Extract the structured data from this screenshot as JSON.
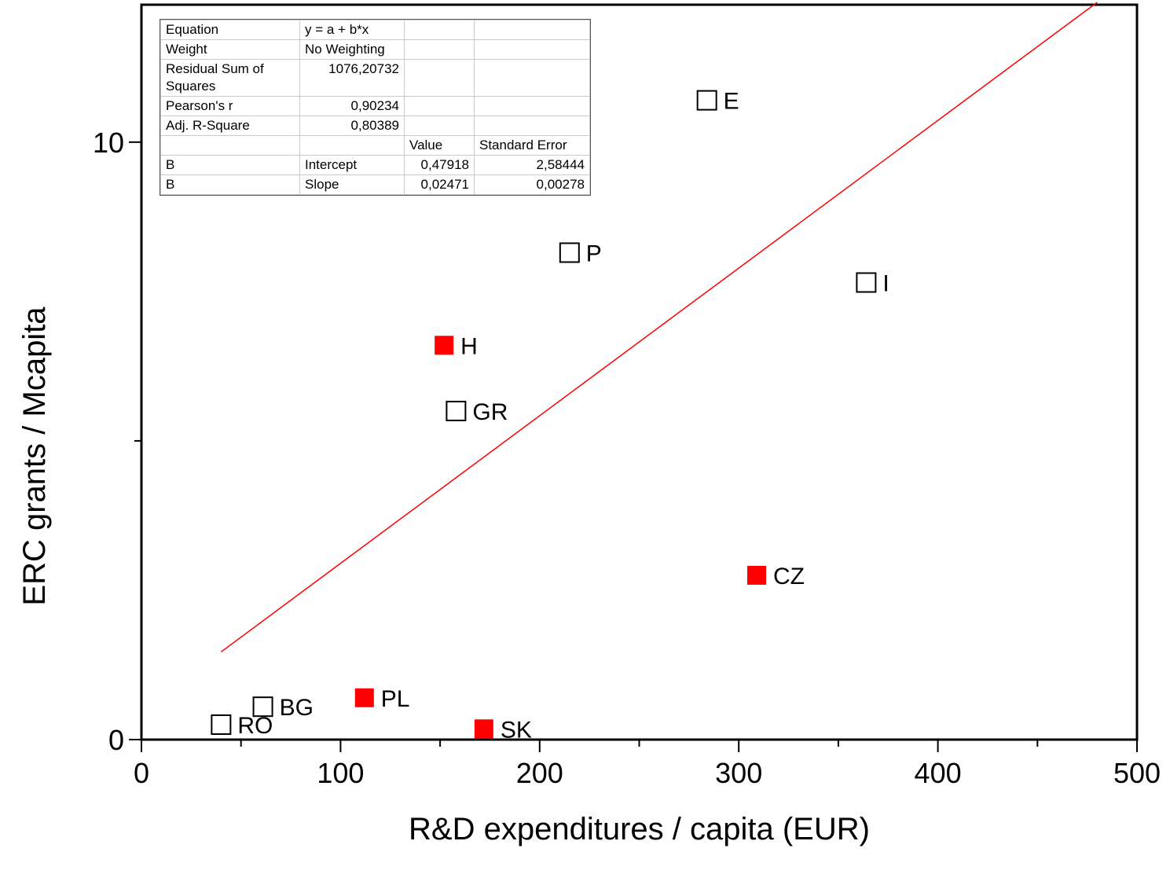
{
  "chart_data": {
    "type": "scatter",
    "title": "",
    "xlabel": "R&D expenditures / capita (EUR)",
    "ylabel": "ERC grants / Mcapita",
    "xlim": [
      0,
      500
    ],
    "ylim": [
      0,
      12.3
    ],
    "x_ticks": [
      0,
      100,
      200,
      300,
      400,
      500
    ],
    "y_ticks": [
      0,
      10
    ],
    "grid": false,
    "series": [
      {
        "marker": "open-square",
        "color": "#000000",
        "points": [
          {
            "label": "RO",
            "x": 40,
            "y": 0.25
          },
          {
            "label": "BG",
            "x": 61,
            "y": 0.55
          },
          {
            "label": "GR",
            "x": 158,
            "y": 5.5
          },
          {
            "label": "P",
            "x": 215,
            "y": 8.15
          },
          {
            "label": "E",
            "x": 284,
            "y": 10.7
          },
          {
            "label": "I",
            "x": 364,
            "y": 7.65
          }
        ]
      },
      {
        "marker": "filled-square",
        "color": "#ff0000",
        "points": [
          {
            "label": "PL",
            "x": 112,
            "y": 0.7
          },
          {
            "label": "H",
            "x": 152,
            "y": 6.6
          },
          {
            "label": "SK",
            "x": 172,
            "y": 0.18
          },
          {
            "label": "CZ",
            "x": 309,
            "y": 2.75
          }
        ]
      }
    ],
    "fit_line": {
      "color": "#ff0000",
      "intercept": 0.47918,
      "slope": 0.02471,
      "x_range": [
        40,
        480
      ]
    }
  },
  "stats_table": {
    "rows": [
      [
        "Equation",
        "y = a + b*x",
        "",
        ""
      ],
      [
        "Weight",
        "No Weighting",
        "",
        ""
      ],
      [
        "Residual Sum of Squares",
        "1076,20732",
        "",
        ""
      ],
      [
        "Pearson's r",
        "0,90234",
        "",
        ""
      ],
      [
        "Adj. R-Square",
        "0,80389",
        "",
        ""
      ],
      [
        "",
        "",
        "Value",
        "Standard Error"
      ],
      [
        "B",
        "Intercept",
        "0,47918",
        "2,58444"
      ],
      [
        "B",
        "Slope",
        "0,02471",
        "0,00278"
      ]
    ]
  }
}
